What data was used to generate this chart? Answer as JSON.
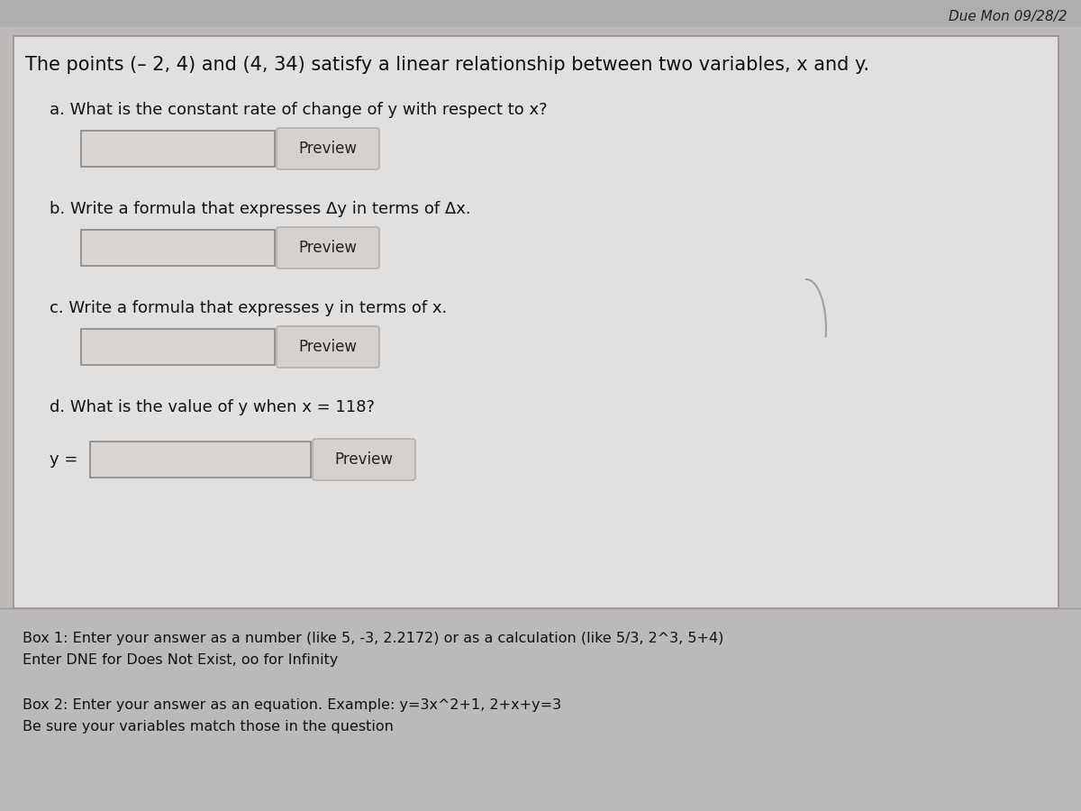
{
  "background_color": "#bcbab8",
  "due_text": "Due Mon 09/28/2",
  "title_text": "The points (– 2, 4) and (4, 34) satisfy a linear relationship between two variables, x and y.",
  "q_a": "a. What is the constant rate of change of y with respect to x?",
  "q_b": "b. Write a formula that expresses Δy in terms of Δx.",
  "q_c": "c. Write a formula that expresses y in terms of x.",
  "q_d": "d. What is the value of y when x = 118?",
  "y_equals": "y =",
  "preview_text": "Preview",
  "box1_label": "Box 1: Enter your answer as a number (like 5, -3, 2.2172) or as a calculation (like 5/3, 2^3, 5+4)",
  "box1_label2": "Enter DNE for Does Not Exist, oo for Infinity",
  "box2_label": "Box 2: Enter your answer as an equation. Example: y=3x^2+1, 2+x+y=3",
  "box2_label2": "Be sure your variables match those in the question",
  "content_bg": "#e2e0de",
  "input_bg": "#d8d5d2",
  "preview_bg": "#d4d1ce",
  "font_size_title": 15,
  "font_size_q": 13,
  "font_size_preview": 12,
  "font_size_small": 11.5
}
